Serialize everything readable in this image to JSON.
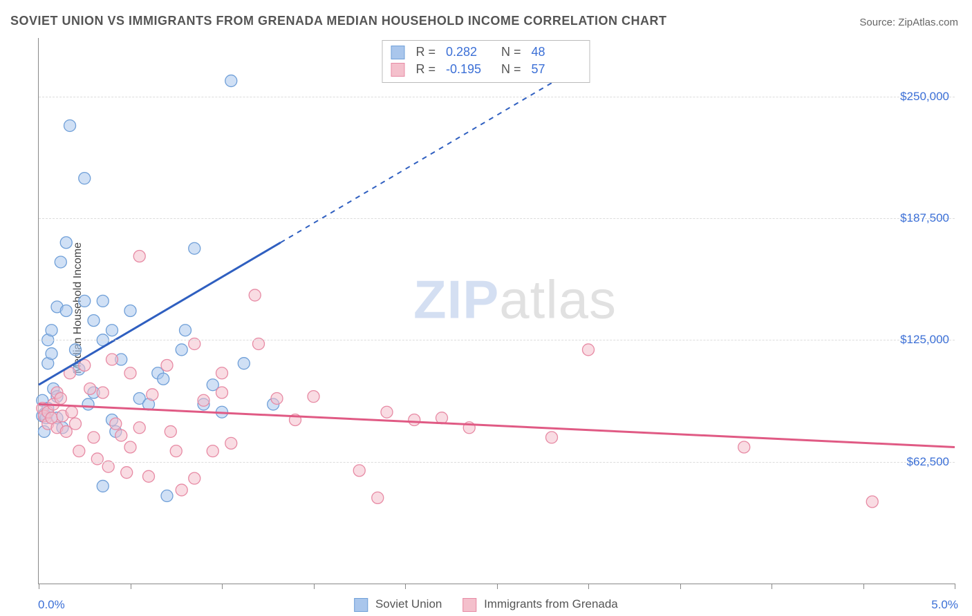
{
  "title": "SOVIET UNION VS IMMIGRANTS FROM GRENADA MEDIAN HOUSEHOLD INCOME CORRELATION CHART",
  "source_label": "Source: ",
  "source_value": "ZipAtlas.com",
  "ylabel": "Median Household Income",
  "watermark_zip": "ZIP",
  "watermark_atlas": "atlas",
  "chart": {
    "type": "scatter",
    "xlim": [
      0.0,
      5.0
    ],
    "ylim": [
      0,
      280000
    ],
    "x_tick_positions": [
      0.0,
      0.5,
      1.0,
      1.5,
      2.0,
      2.5,
      3.0,
      3.5,
      4.0,
      4.5,
      5.0
    ],
    "x_left_label": "0.0%",
    "x_right_label": "5.0%",
    "y_gridlines": [
      62500,
      125000,
      187500,
      250000
    ],
    "y_labels": [
      "$62,500",
      "$125,000",
      "$187,500",
      "$250,000"
    ],
    "background_color": "#ffffff",
    "grid_color": "#dcdcdc",
    "axis_color": "#888888",
    "marker_radius": 8.5,
    "marker_opacity": 0.55,
    "line_width": 3,
    "series": [
      {
        "name": "Soviet Union",
        "color_fill": "#a9c6ec",
        "color_stroke": "#6f9fd8",
        "line_color": "#2f5fc0",
        "R": "0.282",
        "N": "48",
        "regression": {
          "x1": 0.0,
          "y1": 102000,
          "x2": 1.32,
          "y2": 175000,
          "dash_from_x": 1.32,
          "dash_to_x": 3.0,
          "dash_to_y": 268000
        },
        "points": [
          [
            0.02,
            94000
          ],
          [
            0.02,
            86000
          ],
          [
            0.03,
            87000
          ],
          [
            0.03,
            78000
          ],
          [
            0.04,
            85000
          ],
          [
            0.05,
            90000
          ],
          [
            0.05,
            113000
          ],
          [
            0.05,
            125000
          ],
          [
            0.07,
            130000
          ],
          [
            0.07,
            118000
          ],
          [
            0.08,
            100000
          ],
          [
            0.1,
            142000
          ],
          [
            0.1,
            96000
          ],
          [
            0.1,
            85000
          ],
          [
            0.12,
            165000
          ],
          [
            0.13,
            80000
          ],
          [
            0.15,
            175000
          ],
          [
            0.15,
            140000
          ],
          [
            0.17,
            235000
          ],
          [
            0.2,
            120000
          ],
          [
            0.22,
            110000
          ],
          [
            0.25,
            145000
          ],
          [
            0.25,
            208000
          ],
          [
            0.27,
            92000
          ],
          [
            0.3,
            135000
          ],
          [
            0.3,
            98000
          ],
          [
            0.35,
            125000
          ],
          [
            0.35,
            145000
          ],
          [
            0.35,
            50000
          ],
          [
            0.4,
            130000
          ],
          [
            0.4,
            84000
          ],
          [
            0.42,
            78000
          ],
          [
            0.45,
            115000
          ],
          [
            0.5,
            140000
          ],
          [
            0.55,
            95000
          ],
          [
            0.6,
            92000
          ],
          [
            0.65,
            108000
          ],
          [
            0.68,
            105000
          ],
          [
            0.7,
            45000
          ],
          [
            0.78,
            120000
          ],
          [
            0.8,
            130000
          ],
          [
            0.85,
            172000
          ],
          [
            0.9,
            92000
          ],
          [
            0.95,
            102000
          ],
          [
            1.0,
            88000
          ],
          [
            1.05,
            258000
          ],
          [
            1.12,
            113000
          ],
          [
            1.28,
            92000
          ]
        ]
      },
      {
        "name": "Immigrants from Grenada",
        "color_fill": "#f4c0cc",
        "color_stroke": "#e78aa4",
        "line_color": "#e05a84",
        "R": "-0.195",
        "N": "57",
        "regression": {
          "x1": 0.0,
          "y1": 92000,
          "x2": 5.0,
          "y2": 70000
        },
        "points": [
          [
            0.02,
            90000
          ],
          [
            0.03,
            86000
          ],
          [
            0.05,
            88000
          ],
          [
            0.05,
            82000
          ],
          [
            0.07,
            85000
          ],
          [
            0.08,
            92000
          ],
          [
            0.1,
            98000
          ],
          [
            0.1,
            80000
          ],
          [
            0.12,
            95000
          ],
          [
            0.13,
            86000
          ],
          [
            0.15,
            78000
          ],
          [
            0.17,
            108000
          ],
          [
            0.18,
            88000
          ],
          [
            0.2,
            82000
          ],
          [
            0.22,
            68000
          ],
          [
            0.25,
            112000
          ],
          [
            0.28,
            100000
          ],
          [
            0.3,
            75000
          ],
          [
            0.32,
            64000
          ],
          [
            0.35,
            98000
          ],
          [
            0.38,
            60000
          ],
          [
            0.4,
            115000
          ],
          [
            0.42,
            82000
          ],
          [
            0.45,
            76000
          ],
          [
            0.48,
            57000
          ],
          [
            0.5,
            108000
          ],
          [
            0.5,
            70000
          ],
          [
            0.55,
            168000
          ],
          [
            0.55,
            80000
          ],
          [
            0.6,
            55000
          ],
          [
            0.62,
            97000
          ],
          [
            0.7,
            112000
          ],
          [
            0.72,
            78000
          ],
          [
            0.75,
            68000
          ],
          [
            0.78,
            48000
          ],
          [
            0.85,
            123000
          ],
          [
            0.85,
            54000
          ],
          [
            0.9,
            94000
          ],
          [
            0.95,
            68000
          ],
          [
            1.0,
            98000
          ],
          [
            1.0,
            108000
          ],
          [
            1.05,
            72000
          ],
          [
            1.18,
            148000
          ],
          [
            1.2,
            123000
          ],
          [
            1.3,
            95000
          ],
          [
            1.4,
            84000
          ],
          [
            1.5,
            96000
          ],
          [
            1.75,
            58000
          ],
          [
            1.85,
            44000
          ],
          [
            1.9,
            88000
          ],
          [
            2.05,
            84000
          ],
          [
            2.2,
            85000
          ],
          [
            2.35,
            80000
          ],
          [
            2.8,
            75000
          ],
          [
            3.0,
            120000
          ],
          [
            3.85,
            70000
          ],
          [
            4.55,
            42000
          ]
        ]
      }
    ],
    "legend_bottom": [
      {
        "label": "Soviet Union"
      },
      {
        "label": "Immigrants from Grenada"
      }
    ]
  }
}
